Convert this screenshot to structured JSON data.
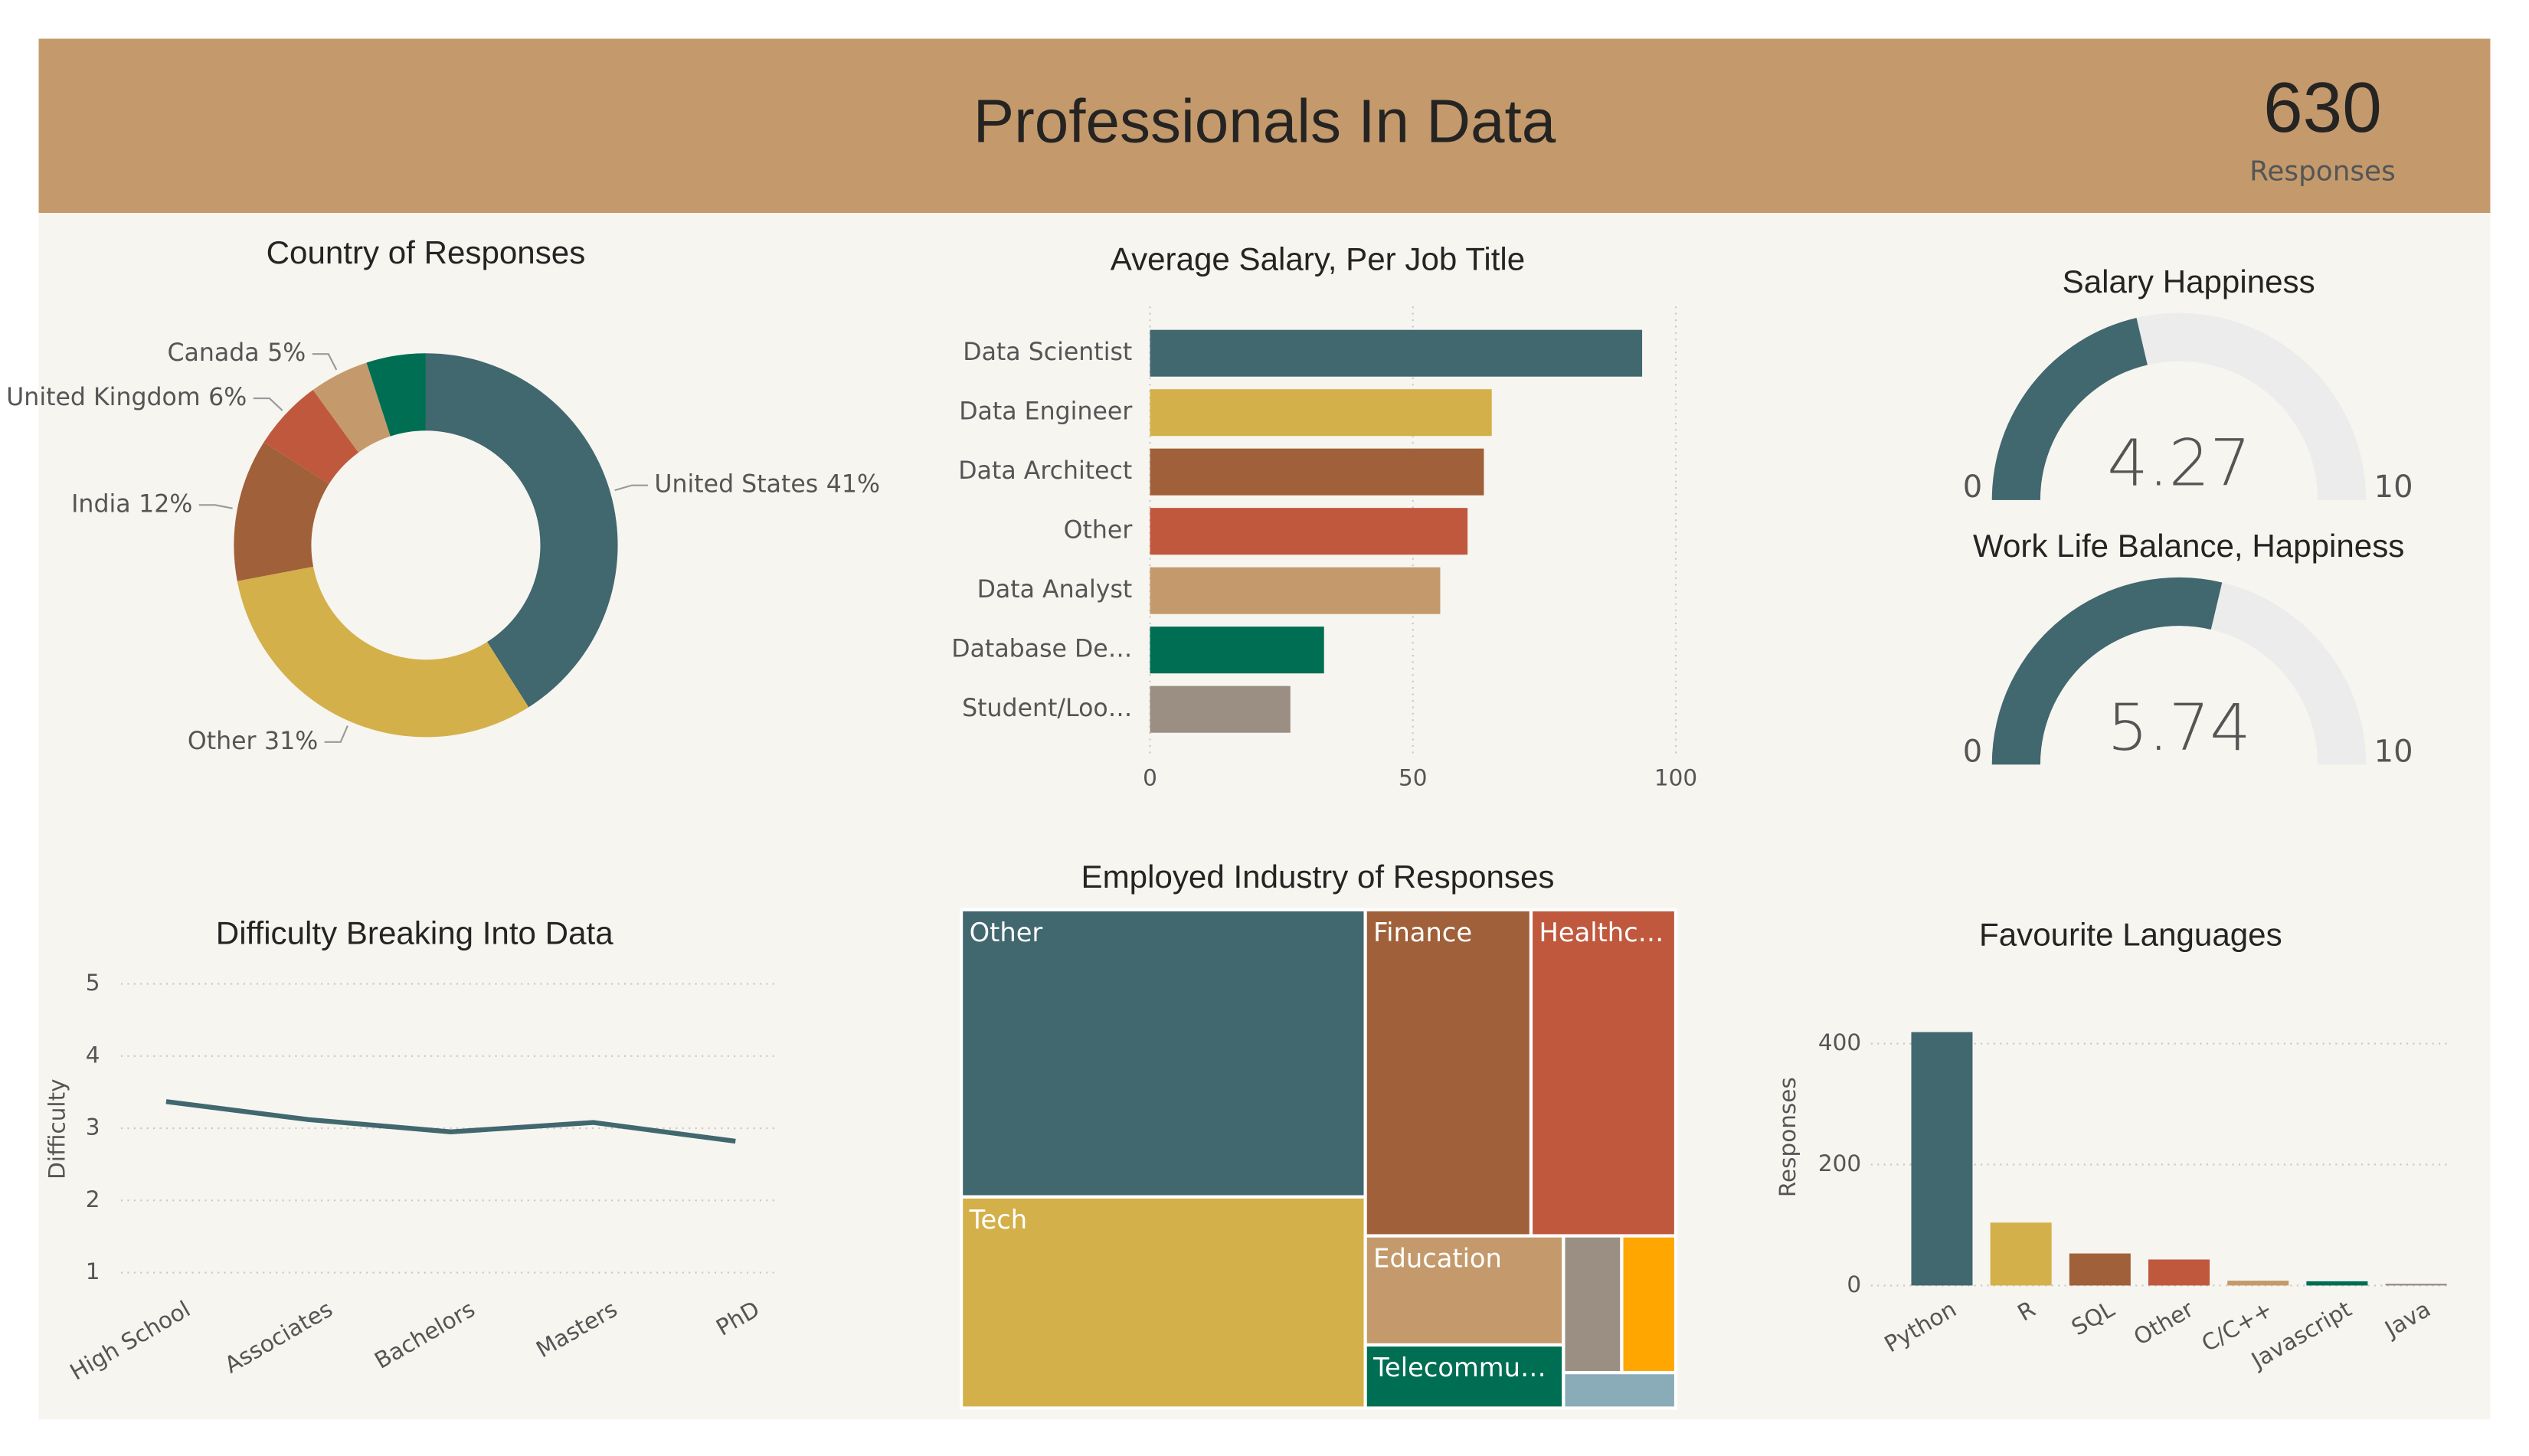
{
  "header": {
    "title": "Professionals In Data",
    "count": 630,
    "count_label": "Responses"
  },
  "chart_data": [
    {
      "type": "donut",
      "title": "Country of Responses",
      "categories": [
        "United States",
        "Other",
        "India",
        "United Kingdom",
        "Canada",
        null
      ],
      "values": [
        41,
        31,
        12,
        6,
        5,
        5
      ],
      "value_labels": [
        "41%",
        "31%",
        "12%",
        "6%",
        "5%",
        null
      ],
      "colors": [
        "#41676f",
        "#d4b04a",
        "#a0603a",
        "#c0583e",
        "#c49a6c",
        "#006e52"
      ]
    },
    {
      "type": "bar",
      "orientation": "horizontal",
      "title": "Average Salary, Per Job Title",
      "categories": [
        "Data Scientist",
        "Data Engineer",
        "Data Architect",
        "Other",
        "Data Analyst",
        "Database De…",
        "Student/Loo…"
      ],
      "values": [
        93.6,
        65,
        63.5,
        60.4,
        55.2,
        33.1,
        26.7
      ],
      "colors": [
        "#41676f",
        "#d4b04a",
        "#a0603a",
        "#c0583e",
        "#c49a6c",
        "#006e52",
        "#9b8f84"
      ],
      "xlim": [
        0,
        100
      ],
      "xticks": [
        0,
        50,
        100
      ],
      "grid": true
    },
    {
      "type": "gauge",
      "title": "Salary Happiness",
      "value": 4.27,
      "min": 0,
      "max": 10,
      "color": "#41676f"
    },
    {
      "type": "gauge",
      "title": "Work Life Balance, Happiness",
      "value": 5.74,
      "min": 0,
      "max": 10,
      "color": "#41676f"
    },
    {
      "type": "line",
      "title": "Difficulty Breaking Into Data",
      "ylabel": "Difficulty",
      "categories": [
        "High School",
        "Associates",
        "Bachelors",
        "Masters",
        "PhD"
      ],
      "values": [
        3.37,
        3.12,
        2.95,
        3.08,
        2.82
      ],
      "color": "#41676f",
      "ylim": [
        1,
        5
      ],
      "yticks": [
        1,
        2,
        3,
        4,
        5
      ],
      "grid": true
    },
    {
      "type": "treemap",
      "title": "Employed Industry of Responses",
      "categories": [
        "Other",
        "Tech",
        "Finance",
        "Healthc…",
        "Education",
        "Telecommu…",
        null,
        null,
        null
      ],
      "values": [
        204,
        150,
        95,
        83,
        38,
        22,
        14,
        13,
        7
      ],
      "colors": [
        "#41676f",
        "#d4b04a",
        "#a0603a",
        "#c0583e",
        "#c49a6c",
        "#006e52",
        "#9b8f84",
        "#ffa600",
        "#8aabb8"
      ]
    },
    {
      "type": "bar",
      "orientation": "vertical",
      "title": "Favourite Languages",
      "ylabel": "Responses",
      "categories": [
        "Python",
        "R",
        "SQL",
        "Other",
        "C/C++",
        "Javascript",
        "Java"
      ],
      "values": [
        419,
        104,
        53,
        43,
        8,
        7,
        3
      ],
      "colors": [
        "#41676f",
        "#d4b04a",
        "#a0603a",
        "#c0583e",
        "#c49a6c",
        "#006e52",
        "#9b8f84"
      ],
      "ylim": [
        0,
        420
      ],
      "yticks": [
        0,
        200,
        400
      ],
      "grid": true
    }
  ]
}
